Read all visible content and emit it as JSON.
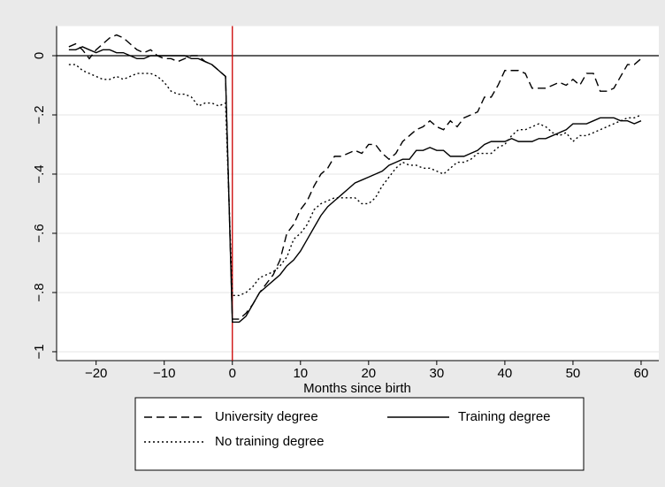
{
  "chart_data": {
    "type": "line",
    "xlabel": "Months since birth",
    "x": [
      -24,
      -23,
      -22,
      -21,
      -20,
      -19,
      -18,
      -17,
      -16,
      -15,
      -14,
      -13,
      -12,
      -11,
      -10,
      -9,
      -8,
      -7,
      -6,
      -5,
      -4,
      -3,
      -2,
      -1,
      0,
      1,
      2,
      3,
      4,
      5,
      6,
      7,
      8,
      9,
      10,
      11,
      12,
      13,
      14,
      15,
      16,
      17,
      18,
      19,
      20,
      21,
      22,
      23,
      24,
      25,
      26,
      27,
      28,
      29,
      30,
      31,
      32,
      33,
      34,
      35,
      36,
      37,
      38,
      39,
      40,
      41,
      42,
      43,
      44,
      45,
      46,
      47,
      48,
      49,
      50,
      51,
      52,
      53,
      54,
      55,
      56,
      57,
      58,
      59,
      60
    ],
    "series": [
      {
        "name": "University degree",
        "color": "#000000",
        "line_style": "dashed",
        "values": [
          0.03,
          0.04,
          0.02,
          -0.01,
          0.02,
          0.04,
          0.06,
          0.07,
          0.06,
          0.04,
          0.02,
          0.01,
          0.02,
          0.0,
          -0.01,
          -0.01,
          -0.02,
          -0.01,
          0.0,
          0.0,
          -0.02,
          -0.03,
          -0.05,
          -0.07,
          -0.89,
          -0.89,
          -0.87,
          -0.84,
          -0.8,
          -0.77,
          -0.74,
          -0.69,
          -0.6,
          -0.57,
          -0.52,
          -0.49,
          -0.44,
          -0.4,
          -0.38,
          -0.34,
          -0.34,
          -0.33,
          -0.32,
          -0.33,
          -0.3,
          -0.3,
          -0.33,
          -0.35,
          -0.33,
          -0.29,
          -0.27,
          -0.25,
          -0.24,
          -0.22,
          -0.24,
          -0.25,
          -0.22,
          -0.24,
          -0.21,
          -0.2,
          -0.19,
          -0.14,
          -0.14,
          -0.1,
          -0.05,
          -0.05,
          -0.05,
          -0.06,
          -0.11,
          -0.11,
          -0.11,
          -0.1,
          -0.09,
          -0.1,
          -0.08,
          -0.1,
          -0.06,
          -0.06,
          -0.12,
          -0.12,
          -0.11,
          -0.07,
          -0.03,
          -0.03,
          -0.01
        ]
      },
      {
        "name": "Training degree",
        "color": "#000000",
        "line_style": "solid",
        "values": [
          0.02,
          0.02,
          0.03,
          0.02,
          0.01,
          0.02,
          0.02,
          0.01,
          0.01,
          0.0,
          -0.01,
          -0.01,
          0.0,
          0.0,
          0.0,
          0.0,
          0.0,
          0.0,
          -0.01,
          -0.01,
          -0.02,
          -0.03,
          -0.05,
          -0.07,
          -0.9,
          -0.9,
          -0.88,
          -0.84,
          -0.8,
          -0.78,
          -0.76,
          -0.74,
          -0.71,
          -0.69,
          -0.66,
          -0.62,
          -0.58,
          -0.54,
          -0.51,
          -0.49,
          -0.47,
          -0.45,
          -0.43,
          -0.42,
          -0.41,
          -0.4,
          -0.39,
          -0.37,
          -0.36,
          -0.35,
          -0.35,
          -0.32,
          -0.32,
          -0.31,
          -0.32,
          -0.32,
          -0.34,
          -0.34,
          -0.34,
          -0.33,
          -0.32,
          -0.3,
          -0.29,
          -0.29,
          -0.29,
          -0.28,
          -0.29,
          -0.29,
          -0.29,
          -0.28,
          -0.28,
          -0.27,
          -0.26,
          -0.25,
          -0.23,
          -0.23,
          -0.23,
          -0.22,
          -0.21,
          -0.21,
          -0.21,
          -0.22,
          -0.22,
          -0.23,
          -0.22
        ]
      },
      {
        "name": "No training degree",
        "color": "#000000",
        "line_style": "dotted",
        "values": [
          -0.03,
          -0.03,
          -0.05,
          -0.06,
          -0.07,
          -0.08,
          -0.08,
          -0.07,
          -0.08,
          -0.07,
          -0.06,
          -0.06,
          -0.06,
          -0.07,
          -0.09,
          -0.12,
          -0.13,
          -0.13,
          -0.14,
          -0.17,
          -0.16,
          -0.16,
          -0.17,
          -0.16,
          -0.81,
          -0.81,
          -0.8,
          -0.78,
          -0.75,
          -0.74,
          -0.73,
          -0.71,
          -0.68,
          -0.62,
          -0.6,
          -0.57,
          -0.52,
          -0.5,
          -0.49,
          -0.48,
          -0.48,
          -0.48,
          -0.48,
          -0.5,
          -0.5,
          -0.48,
          -0.44,
          -0.41,
          -0.38,
          -0.36,
          -0.37,
          -0.37,
          -0.38,
          -0.38,
          -0.39,
          -0.4,
          -0.38,
          -0.36,
          -0.36,
          -0.35,
          -0.33,
          -0.33,
          -0.33,
          -0.31,
          -0.3,
          -0.27,
          -0.25,
          -0.25,
          -0.24,
          -0.23,
          -0.24,
          -0.26,
          -0.27,
          -0.26,
          -0.29,
          -0.27,
          -0.27,
          -0.26,
          -0.25,
          -0.24,
          -0.23,
          -0.22,
          -0.21,
          -0.21,
          -0.2
        ]
      }
    ],
    "xlim": [
      -25.8,
      62.6
    ],
    "ylim": [
      -1.03,
      0.1
    ],
    "xticks": [
      {
        "value": -20,
        "label": "−20"
      },
      {
        "value": -10,
        "label": "−10"
      },
      0,
      10,
      20,
      30,
      40,
      50,
      60
    ],
    "yticks": [
      {
        "value": -1,
        "label": "−1"
      },
      {
        "value": -0.8,
        "label": "−.8"
      },
      {
        "value": -0.6,
        "label": "−.6"
      },
      {
        "value": -0.4,
        "label": "−.4"
      },
      {
        "value": -0.2,
        "label": "−.2"
      },
      0
    ],
    "grid": true,
    "hline": 0,
    "hline_color": "#000000",
    "vline": 0,
    "vline_color": "#cc0000",
    "legend": "bottom"
  }
}
